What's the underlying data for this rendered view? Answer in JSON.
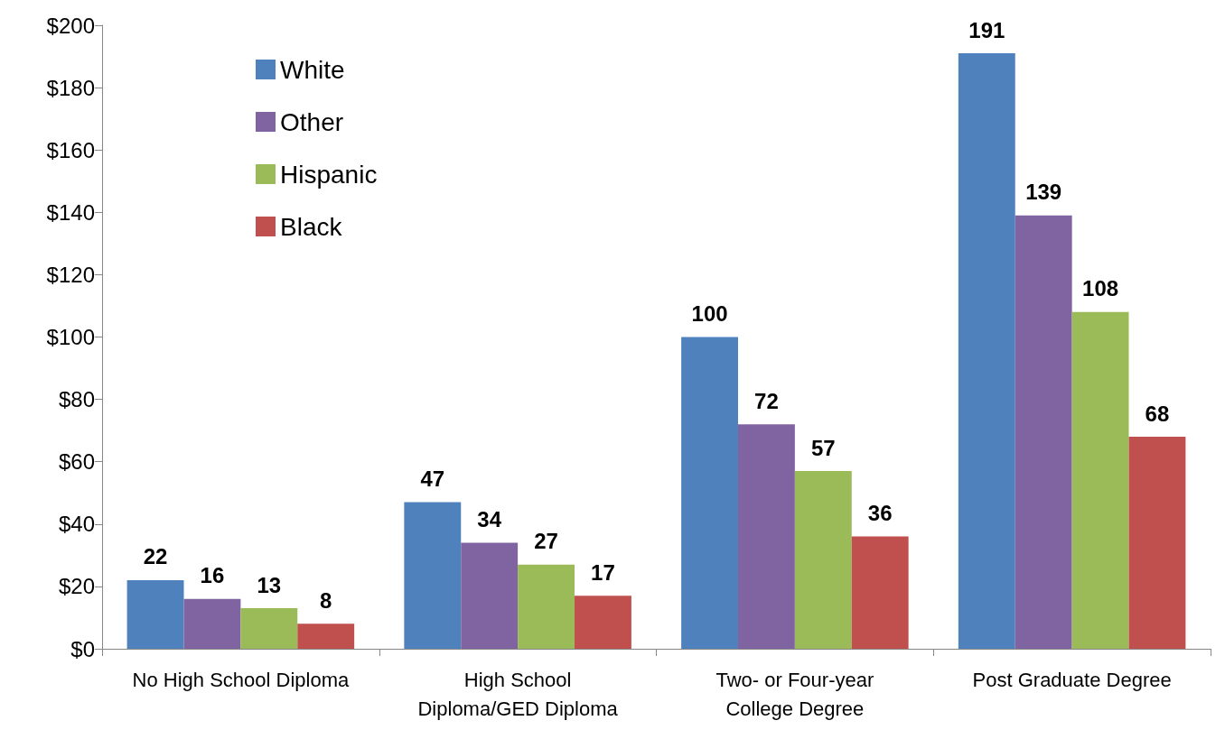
{
  "chart_data": {
    "type": "bar",
    "categories": [
      "No High School Diploma",
      "High School\nDiploma/GED Diploma",
      "Two- or Four-year\nCollege Degree",
      "Post Graduate Degree"
    ],
    "series": [
      {
        "name": "White",
        "color": "#4f81bd",
        "values": [
          22,
          47,
          100,
          191
        ]
      },
      {
        "name": "Other",
        "color": "#8064a2",
        "values": [
          16,
          34,
          72,
          139
        ]
      },
      {
        "name": "Hispanic",
        "color": "#9bbb59",
        "values": [
          13,
          27,
          57,
          108
        ]
      },
      {
        "name": "Black",
        "color": "#c0504d",
        "values": [
          8,
          17,
          36,
          68
        ]
      }
    ],
    "ylim": [
      0,
      200
    ],
    "yticks": [
      {
        "value": 0,
        "label": "$0"
      },
      {
        "value": 20,
        "label": "$20"
      },
      {
        "value": 40,
        "label": "$40"
      },
      {
        "value": 60,
        "label": "$60"
      },
      {
        "value": 80,
        "label": "$80"
      },
      {
        "value": 100,
        "label": "$100"
      },
      {
        "value": 120,
        "label": "$120"
      },
      {
        "value": 140,
        "label": "$140"
      },
      {
        "value": 160,
        "label": "$160"
      },
      {
        "value": 180,
        "label": "$180"
      },
      {
        "value": 200,
        "label": "$200"
      }
    ],
    "data_labels": true,
    "grid": false,
    "legend": "top left"
  }
}
